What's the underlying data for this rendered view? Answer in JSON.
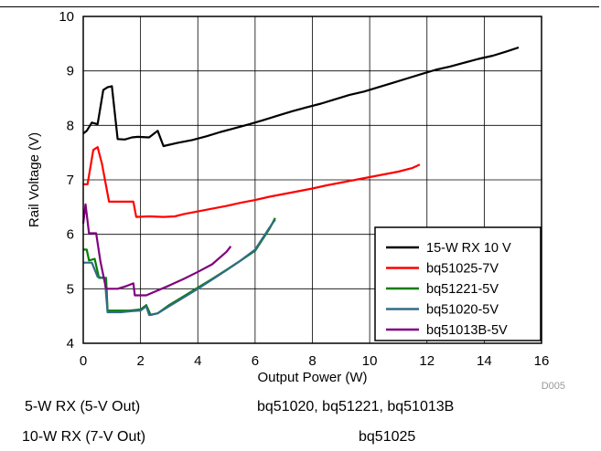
{
  "figure_code": "D005",
  "chart_data": {
    "type": "line",
    "xlabel": "Output Power (W)",
    "ylabel": "Rail Voltage (V)",
    "xlim": [
      0,
      16
    ],
    "ylim": [
      4,
      10
    ],
    "xticks": [
      0,
      2,
      4,
      6,
      8,
      10,
      12,
      14,
      16
    ],
    "yticks": [
      4,
      5,
      6,
      7,
      8,
      9,
      10
    ],
    "grid": true,
    "legend_position": "bottom-right",
    "series": [
      {
        "name": "15-W RX 10 V",
        "color": "#000000",
        "points": [
          [
            0,
            7.85
          ],
          [
            0.12,
            7.9
          ],
          [
            0.3,
            8.05
          ],
          [
            0.5,
            8.02
          ],
          [
            0.7,
            8.65
          ],
          [
            0.85,
            8.7
          ],
          [
            1.0,
            8.72
          ],
          [
            1.2,
            7.75
          ],
          [
            1.45,
            7.74
          ],
          [
            1.7,
            7.78
          ],
          [
            1.9,
            7.79
          ],
          [
            2.3,
            7.78
          ],
          [
            2.6,
            7.9
          ],
          [
            2.8,
            7.62
          ],
          [
            3.3,
            7.68
          ],
          [
            3.8,
            7.73
          ],
          [
            4.3,
            7.8
          ],
          [
            4.8,
            7.88
          ],
          [
            5.3,
            7.95
          ],
          [
            5.8,
            8.02
          ],
          [
            6.3,
            8.1
          ],
          [
            6.8,
            8.18
          ],
          [
            7.3,
            8.26
          ],
          [
            7.8,
            8.33
          ],
          [
            8.3,
            8.4
          ],
          [
            8.8,
            8.48
          ],
          [
            9.3,
            8.56
          ],
          [
            9.8,
            8.62
          ],
          [
            10.3,
            8.7
          ],
          [
            10.8,
            8.78
          ],
          [
            11.3,
            8.86
          ],
          [
            11.8,
            8.94
          ],
          [
            12.3,
            9.02
          ],
          [
            12.8,
            9.08
          ],
          [
            13.3,
            9.15
          ],
          [
            13.8,
            9.22
          ],
          [
            14.3,
            9.28
          ],
          [
            14.8,
            9.36
          ],
          [
            15.2,
            9.43
          ]
        ]
      },
      {
        "name": "bq51025-7V",
        "color": "#ff0000",
        "points": [
          [
            0,
            6.92
          ],
          [
            0.15,
            6.92
          ],
          [
            0.35,
            7.55
          ],
          [
            0.5,
            7.6
          ],
          [
            0.65,
            7.3
          ],
          [
            0.9,
            6.6
          ],
          [
            1.3,
            6.6
          ],
          [
            1.75,
            6.6
          ],
          [
            1.85,
            6.32
          ],
          [
            2.3,
            6.33
          ],
          [
            2.8,
            6.32
          ],
          [
            3.2,
            6.33
          ],
          [
            3.5,
            6.37
          ],
          [
            4.0,
            6.42
          ],
          [
            4.5,
            6.47
          ],
          [
            5.0,
            6.52
          ],
          [
            5.5,
            6.58
          ],
          [
            6.0,
            6.63
          ],
          [
            6.5,
            6.69
          ],
          [
            7.0,
            6.74
          ],
          [
            7.5,
            6.79
          ],
          [
            8.0,
            6.84
          ],
          [
            8.5,
            6.9
          ],
          [
            9.0,
            6.95
          ],
          [
            9.5,
            7.0
          ],
          [
            10.0,
            7.05
          ],
          [
            10.5,
            7.1
          ],
          [
            11.0,
            7.15
          ],
          [
            11.5,
            7.22
          ],
          [
            11.75,
            7.28
          ]
        ]
      },
      {
        "name": "bq51221-5V",
        "color": "#008000",
        "points": [
          [
            0,
            5.72
          ],
          [
            0.12,
            5.72
          ],
          [
            0.2,
            5.52
          ],
          [
            0.4,
            5.55
          ],
          [
            0.55,
            5.2
          ],
          [
            0.8,
            5.2
          ],
          [
            0.85,
            4.6
          ],
          [
            1.2,
            4.6
          ],
          [
            1.6,
            4.6
          ],
          [
            2.0,
            4.62
          ],
          [
            2.2,
            4.7
          ],
          [
            2.35,
            4.52
          ],
          [
            2.6,
            4.55
          ],
          [
            3.0,
            4.7
          ],
          [
            3.5,
            4.86
          ],
          [
            4.0,
            5.02
          ],
          [
            4.5,
            5.18
          ],
          [
            5.0,
            5.35
          ],
          [
            5.5,
            5.52
          ],
          [
            6.0,
            5.7
          ],
          [
            6.5,
            6.1
          ],
          [
            6.7,
            6.3
          ]
        ]
      },
      {
        "name": "bq51020-5V",
        "color": "#336b87",
        "points": [
          [
            0,
            5.48
          ],
          [
            0.3,
            5.48
          ],
          [
            0.5,
            5.22
          ],
          [
            0.75,
            5.2
          ],
          [
            0.85,
            4.57
          ],
          [
            1.3,
            4.57
          ],
          [
            1.7,
            4.59
          ],
          [
            2.0,
            4.6
          ],
          [
            2.2,
            4.68
          ],
          [
            2.3,
            4.52
          ],
          [
            2.6,
            4.55
          ],
          [
            3.0,
            4.68
          ],
          [
            3.5,
            4.84
          ],
          [
            4.0,
            5.0
          ],
          [
            4.5,
            5.17
          ],
          [
            5.0,
            5.34
          ],
          [
            5.5,
            5.52
          ],
          [
            6.0,
            5.72
          ],
          [
            6.5,
            6.12
          ],
          [
            6.7,
            6.27
          ]
        ]
      },
      {
        "name": "bq51013B-5V",
        "color": "#800080",
        "points": [
          [
            0,
            6.2
          ],
          [
            0.08,
            6.55
          ],
          [
            0.2,
            6.02
          ],
          [
            0.45,
            6.02
          ],
          [
            0.6,
            5.5
          ],
          [
            0.8,
            5.0
          ],
          [
            1.2,
            5.0
          ],
          [
            1.5,
            5.05
          ],
          [
            1.75,
            5.1
          ],
          [
            1.8,
            4.88
          ],
          [
            2.2,
            4.88
          ],
          [
            2.6,
            4.97
          ],
          [
            3.0,
            5.06
          ],
          [
            3.5,
            5.18
          ],
          [
            4.0,
            5.31
          ],
          [
            4.5,
            5.45
          ],
          [
            5.0,
            5.68
          ],
          [
            5.15,
            5.78
          ]
        ]
      }
    ]
  },
  "footer": {
    "rows": [
      {
        "left": "5-W RX (5-V Out)",
        "right": "bq51020, bq51221, bq51013B"
      },
      {
        "left": "10-W RX (7-V Out)",
        "right": "bq51025"
      }
    ]
  }
}
